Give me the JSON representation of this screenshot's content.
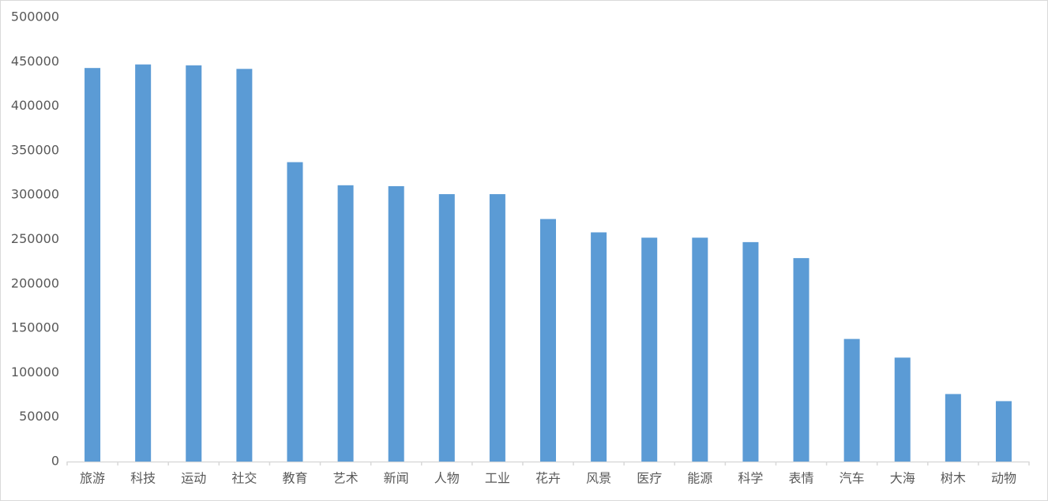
{
  "chart_data": {
    "type": "bar",
    "categories": [
      "旅游",
      "科技",
      "运动",
      "社交",
      "教育",
      "艺术",
      "新闻",
      "人物",
      "工业",
      "花卉",
      "风景",
      "医疗",
      "能源",
      "科学",
      "表情",
      "汽车",
      "大海",
      "树木",
      "动物"
    ],
    "values": [
      443000,
      447000,
      446000,
      442000,
      337000,
      311000,
      310000,
      301000,
      301000,
      273000,
      258000,
      252000,
      252000,
      247000,
      229000,
      138000,
      117000,
      76000,
      68000
    ],
    "color": "#5b9bd5",
    "ylim": [
      0,
      500000
    ],
    "yticks": [
      0,
      50000,
      100000,
      150000,
      200000,
      250000,
      300000,
      350000,
      400000,
      450000,
      500000
    ],
    "grid": false
  }
}
